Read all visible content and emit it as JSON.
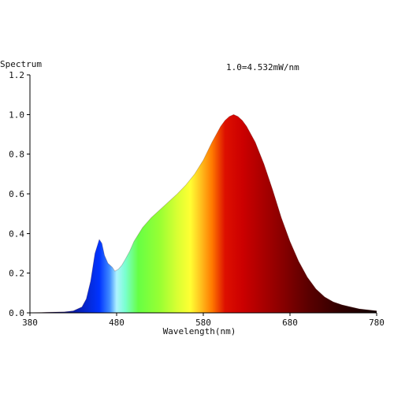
{
  "chart_data": {
    "type": "area",
    "ylabel": "Spectrum",
    "xlabel": "Wavelength(nm)",
    "annotation": "1.0=4.532mW/nm",
    "xlim": [
      380,
      780
    ],
    "ylim": [
      0,
      1.2
    ],
    "x_ticks": [
      380,
      480,
      580,
      680,
      780
    ],
    "y_ticks": [
      "0.0",
      "0.2",
      "0.4",
      "0.6",
      "0.8",
      "1.0",
      "1.2"
    ],
    "grid": false,
    "series": [
      {
        "x": [
          380,
          400,
          420,
          430,
          440,
          445,
          450,
          455,
          460,
          463,
          466,
          470,
          475,
          478,
          482,
          486,
          490,
          495,
          500,
          510,
          520,
          530,
          540,
          550,
          560,
          570,
          580,
          590,
          600,
          605,
          610,
          615,
          620,
          625,
          630,
          640,
          650,
          660,
          670,
          680,
          690,
          700,
          710,
          720,
          730,
          740,
          750,
          760,
          770,
          780
        ],
        "y": [
          0.0,
          0.003,
          0.005,
          0.01,
          0.03,
          0.07,
          0.16,
          0.3,
          0.37,
          0.35,
          0.29,
          0.25,
          0.23,
          0.21,
          0.22,
          0.24,
          0.27,
          0.31,
          0.36,
          0.43,
          0.48,
          0.52,
          0.56,
          0.6,
          0.645,
          0.7,
          0.77,
          0.86,
          0.94,
          0.97,
          0.99,
          1.0,
          0.99,
          0.97,
          0.94,
          0.86,
          0.75,
          0.62,
          0.48,
          0.36,
          0.26,
          0.18,
          0.12,
          0.08,
          0.055,
          0.04,
          0.03,
          0.02,
          0.015,
          0.01
        ]
      }
    ],
    "colors": {
      "gradient_stops": [
        {
          "nm": 380,
          "color": "#1a0033"
        },
        {
          "nm": 430,
          "color": "#0a1aa0"
        },
        {
          "nm": 460,
          "color": "#0033ff"
        },
        {
          "nm": 472,
          "color": "#3f8cff"
        },
        {
          "nm": 480,
          "color": "#aef3ff"
        },
        {
          "nm": 490,
          "color": "#7affd0"
        },
        {
          "nm": 505,
          "color": "#66ff44"
        },
        {
          "nm": 530,
          "color": "#99ff33"
        },
        {
          "nm": 550,
          "color": "#d9ff33"
        },
        {
          "nm": 565,
          "color": "#ffff33"
        },
        {
          "nm": 575,
          "color": "#ffcc22"
        },
        {
          "nm": 590,
          "color": "#ff7a00"
        },
        {
          "nm": 605,
          "color": "#dd1000"
        },
        {
          "nm": 625,
          "color": "#cc0000"
        },
        {
          "nm": 660,
          "color": "#990000"
        },
        {
          "nm": 700,
          "color": "#5c0000"
        },
        {
          "nm": 740,
          "color": "#2e0000"
        },
        {
          "nm": 780,
          "color": "#140000"
        }
      ]
    }
  }
}
